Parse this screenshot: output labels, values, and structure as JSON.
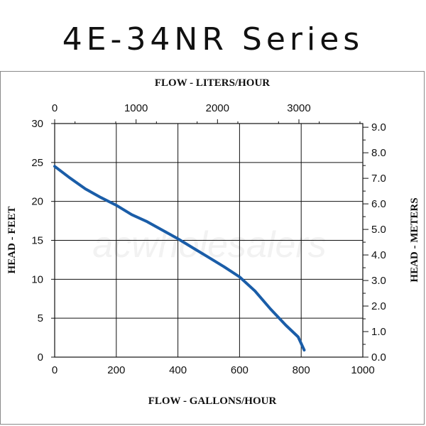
{
  "page": {
    "title": "4E-34NR Series",
    "watermark": "acwholesalers"
  },
  "chart_data": {
    "type": "line",
    "title": "",
    "xlabel": "FLOW - GALLONS/HOUR",
    "ylabel": "HEAD - FEET",
    "x2label": "FLOW - LITERS/HOUR",
    "y2label": "HEAD - METERS",
    "xlim": [
      0,
      1000
    ],
    "ylim": [
      0,
      30
    ],
    "x2lim": [
      0,
      3785
    ],
    "y2lim": [
      0,
      9.144
    ],
    "xticks": [
      "0",
      "200",
      "400",
      "600",
      "800",
      "1000"
    ],
    "yticks": [
      "0",
      "5",
      "10",
      "15",
      "20",
      "25",
      "30"
    ],
    "x2ticks": [
      "0",
      "1000",
      "2000",
      "3000"
    ],
    "y2ticks": [
      "0.0",
      "1.0",
      "2.0",
      "3.0",
      "4.0",
      "5.0",
      "6.0",
      "7.0",
      "8.0",
      "9.0"
    ],
    "grid": true,
    "line_color": "#1a5da8",
    "series": [
      {
        "x": [
          0,
          50,
          100,
          150,
          200,
          250,
          300,
          350,
          400,
          450,
          500,
          550,
          600,
          650,
          700,
          750,
          790,
          810
        ],
        "y": [
          24.5,
          23.0,
          21.6,
          20.5,
          19.5,
          18.3,
          17.4,
          16.3,
          15.2,
          14.0,
          12.8,
          11.6,
          10.3,
          8.5,
          6.2,
          4.1,
          2.6,
          0.9
        ]
      }
    ]
  }
}
